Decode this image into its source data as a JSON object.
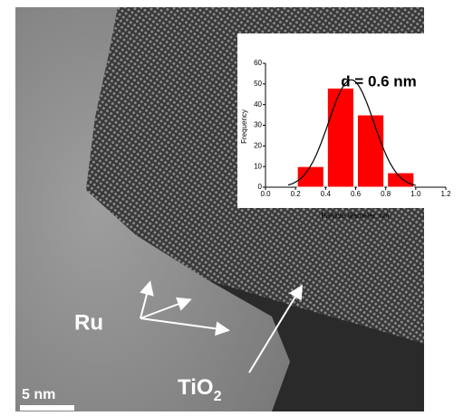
{
  "image": {
    "labels": {
      "ru": "Ru",
      "tio": "TiO",
      "tio_sub": "2",
      "scale": "5 nm"
    }
  },
  "chart_data": {
    "type": "histogram",
    "annotation": "d = 0.6 nm",
    "x_label": "Particle diameter, nm",
    "y_label": "Frequency",
    "bins": [
      0.2,
      0.4,
      0.6,
      0.8,
      1.0
    ],
    "values": [
      10,
      48,
      35,
      7
    ],
    "color": "#ff0000",
    "fit": {
      "mean": 0.57,
      "sigma": 0.15,
      "peak": 52
    },
    "xlim": [
      0,
      1.2
    ],
    "xticks": [
      {
        "value": 0,
        "label": "0.0"
      },
      0.2,
      0.4,
      0.6,
      0.8,
      {
        "value": 1,
        "label": "1.0"
      },
      1.2
    ],
    "ylim": [
      0,
      60
    ],
    "yticks": [
      0,
      10,
      20,
      30,
      40,
      50,
      60
    ]
  }
}
